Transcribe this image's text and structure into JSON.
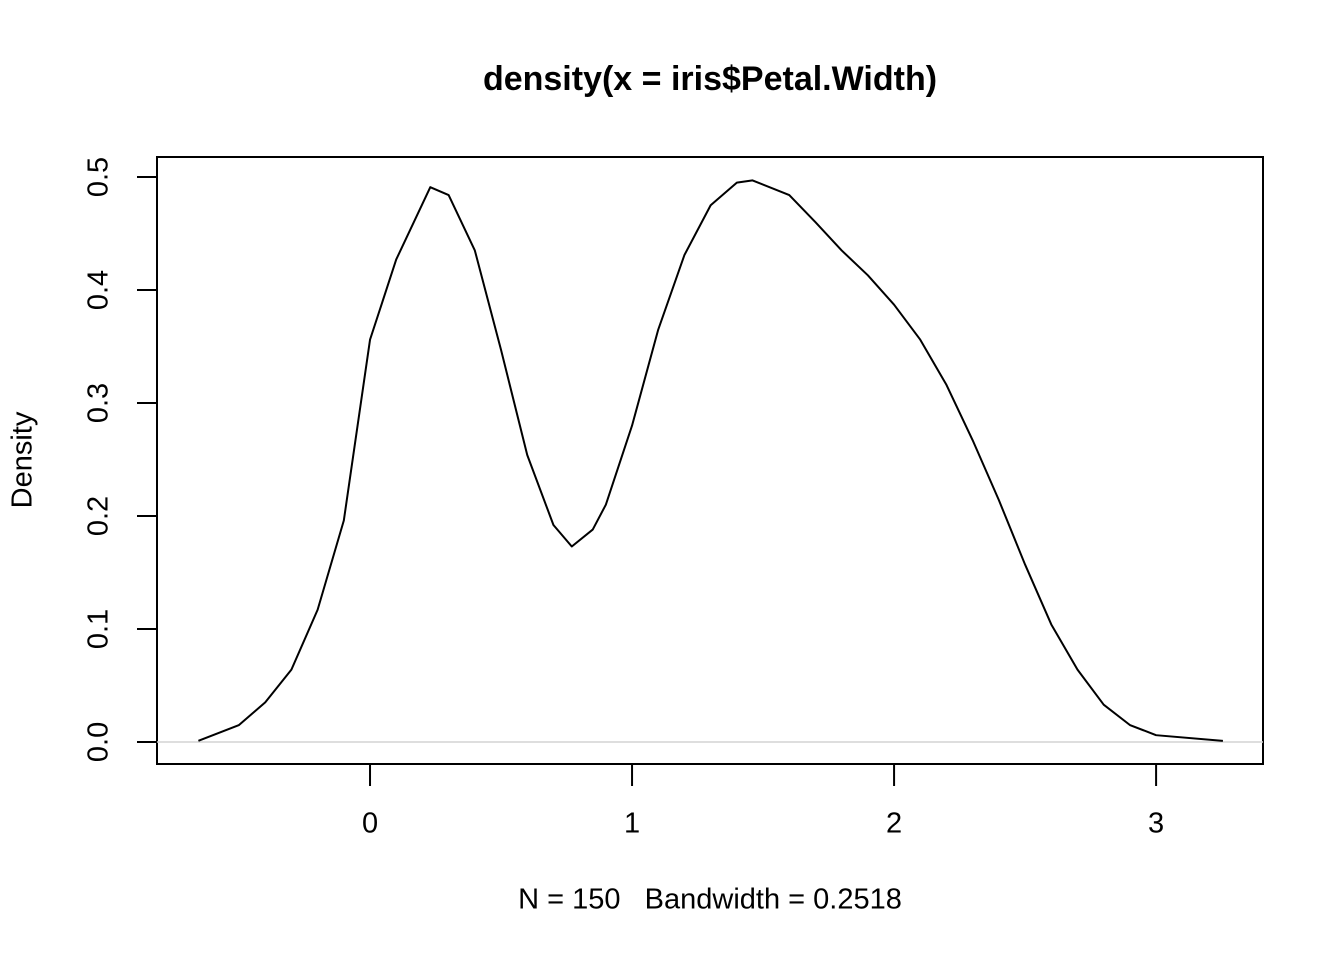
{
  "chart_data": {
    "type": "line",
    "title": "density(x = iris$Petal.Width)",
    "x_label": "N = 150   Bandwidth = 0.2518",
    "y_label": "Density",
    "x": [
      -0.655,
      -0.5,
      -0.4,
      -0.3,
      -0.2,
      -0.1,
      0,
      0.1,
      0.23,
      0.3,
      0.4,
      0.5,
      0.6,
      0.7,
      0.77,
      0.85,
      0.9,
      1.0,
      1.1,
      1.2,
      1.3,
      1.4,
      1.46,
      1.6,
      1.7,
      1.8,
      1.9,
      2.0,
      2.1,
      2.2,
      2.3,
      2.4,
      2.5,
      2.6,
      2.7,
      2.8,
      2.9,
      3.0,
      3.255
    ],
    "series": [
      {
        "name": "density",
        "color": "#000000",
        "values": [
          0.001,
          0.015,
          0.035,
          0.064,
          0.117,
          0.196,
          0.356,
          0.427,
          0.491,
          0.484,
          0.435,
          0.347,
          0.254,
          0.192,
          0.173,
          0.188,
          0.21,
          0.28,
          0.365,
          0.431,
          0.475,
          0.495,
          0.497,
          0.484,
          0.46,
          0.435,
          0.413,
          0.387,
          0.356,
          0.316,
          0.267,
          0.214,
          0.157,
          0.104,
          0.064,
          0.033,
          0.015,
          0.006,
          0.001
        ]
      }
    ],
    "xlim": [
      -0.813,
      3.408
    ],
    "ylim": [
      -0.0195,
      0.5177
    ],
    "xticks": [
      0,
      1,
      2,
      3
    ],
    "yticks": [
      {
        "value": 0,
        "label": "0.0"
      },
      0.1,
      0.2,
      0.3,
      0.4,
      0.5
    ],
    "zero_line_color": "#d3d3d3"
  }
}
